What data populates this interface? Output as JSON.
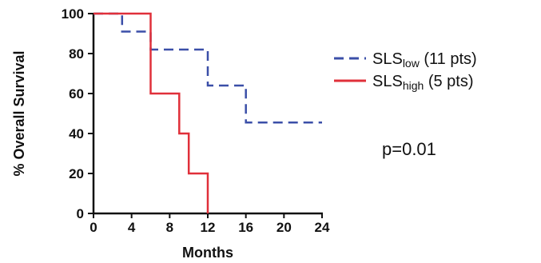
{
  "chart_data": {
    "type": "line",
    "title": "",
    "xlabel": "Months",
    "ylabel": "% Overall Survival",
    "xlim": [
      0,
      24
    ],
    "ylim": [
      0,
      100
    ],
    "xticks": [
      "0",
      "4",
      "8",
      "12",
      "16",
      "20",
      "24"
    ],
    "yticks": [
      "0",
      "20",
      "40",
      "60",
      "80",
      "100"
    ],
    "grid": false,
    "legend_position": "right",
    "series": [
      {
        "name": "SLSlow (11 pts)",
        "name_main": "SLS",
        "name_sub": "low",
        "name_suffix": " (11 pts)",
        "color": "#3b4fa8",
        "style": "dashed",
        "step": true,
        "points": [
          [
            0,
            100
          ],
          [
            3,
            100
          ],
          [
            3,
            91
          ],
          [
            6,
            91
          ],
          [
            6,
            82
          ],
          [
            12,
            82
          ],
          [
            12,
            64
          ],
          [
            16,
            64
          ],
          [
            16,
            45.5
          ],
          [
            24,
            45.5
          ]
        ]
      },
      {
        "name": "SLShigh (5 pts)",
        "name_main": "SLS",
        "name_sub": "high",
        "name_suffix": " (5 pts)",
        "color": "#e0303a",
        "style": "solid",
        "step": true,
        "points": [
          [
            0,
            100
          ],
          [
            6,
            100
          ],
          [
            6,
            60
          ],
          [
            9,
            60
          ],
          [
            9,
            40
          ],
          [
            10,
            40
          ],
          [
            10,
            20
          ],
          [
            12,
            20
          ],
          [
            12,
            0
          ]
        ]
      }
    ],
    "annotations": [
      "p=0.01"
    ]
  }
}
